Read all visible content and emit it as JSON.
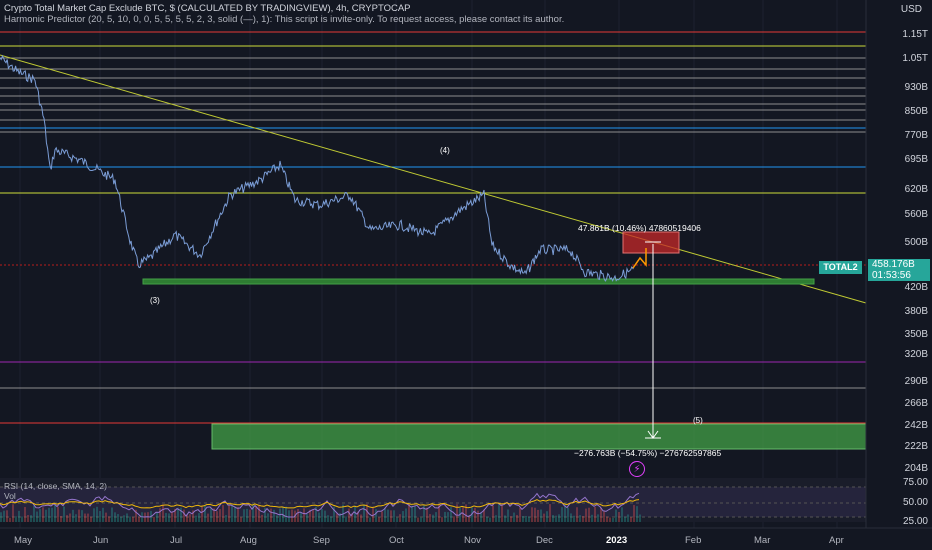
{
  "header": {
    "title": "Crypto Total Market Cap Exclude BTC, $ (CALCULATED BY TRADINGVIEW), 4h, CRYPTOCAP",
    "indicator": "Harmonic Predictor (20, 5, 10, 0, 0, 5, 5, 5, 5, 2, 3, solid (—), 1): This script is invite-only. To request access, please contact its author."
  },
  "price_axis": {
    "currency": "USD",
    "labels": [
      "1.15T",
      "1.05T",
      "930B",
      "850B",
      "770B",
      "695B",
      "620B",
      "560B",
      "500B",
      "420B",
      "380B",
      "350B",
      "320B",
      "290B",
      "266B",
      "242B",
      "222B",
      "204B"
    ]
  },
  "rsi_axis": {
    "labels": [
      "75.00",
      "50.00",
      "25.00"
    ]
  },
  "time_axis": {
    "labels": [
      "May",
      "Jun",
      "Jul",
      "Aug",
      "Sep",
      "Oct",
      "Nov",
      "Dec",
      "2023",
      "Feb",
      "Mar",
      "Apr"
    ]
  },
  "symbol": {
    "name": "TOTAL2",
    "price": "458.176B",
    "countdown": "01:53:56"
  },
  "wave_labels": {
    "w3": "(3)",
    "w4": "(4)",
    "w5": "(5)"
  },
  "measure_up": "47.861B (10.46%) 47860519406",
  "measure_down": "−276.763B (−54.75%) −276762597865",
  "rsi": {
    "title": "RSI (14, close, SMA, 14, 2)",
    "vol": "Vol",
    "value": 64
  },
  "colors": {
    "bg": "#131722",
    "price": "#7b9dd6",
    "accent": "#26a69a",
    "rsi": "#7e57c2",
    "rsi_ma": "#f0b90b",
    "target_up": "#c62828",
    "target_down": "#43a047"
  }
}
